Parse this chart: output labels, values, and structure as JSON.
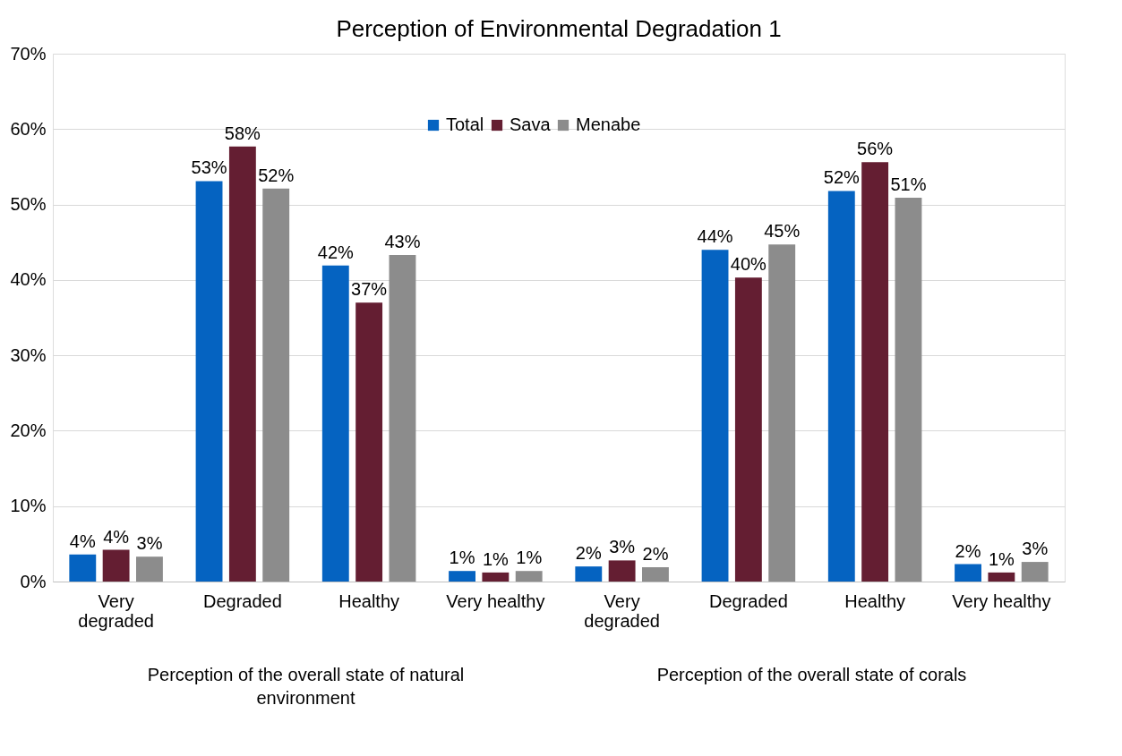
{
  "chart_data": {
    "type": "bar",
    "title": "Perception of Environmental Degradation 1",
    "categories": [
      "Very degraded",
      "Degraded",
      "Healthy",
      "Very healthy",
      "Very degraded",
      "Degraded",
      "Healthy",
      "Very healthy"
    ],
    "series": [
      {
        "name": "Total",
        "color": "#0563c1",
        "values": [
          3.6,
          53.1,
          41.9,
          1.4,
          2.0,
          44.0,
          51.8,
          2.3
        ],
        "value_labels": [
          "4%",
          "53%",
          "42%",
          "1%",
          "2%",
          "44%",
          "52%",
          "2%"
        ]
      },
      {
        "name": "Sava",
        "color": "#641e32",
        "values": [
          4.2,
          57.7,
          37.0,
          1.2,
          2.8,
          40.3,
          55.6,
          1.2
        ],
        "value_labels": [
          "4%",
          "58%",
          "37%",
          "1%",
          "3%",
          "40%",
          "56%",
          "1%"
        ]
      },
      {
        "name": "Menabe",
        "color": "#8c8c8c",
        "values": [
          3.3,
          52.1,
          43.3,
          1.4,
          1.9,
          44.7,
          50.9,
          2.6
        ],
        "value_labels": [
          "3%",
          "52%",
          "43%",
          "1%",
          "2%",
          "45%",
          "51%",
          "3%"
        ]
      }
    ],
    "ylim": [
      0,
      70
    ],
    "yticks": [
      {
        "value": 0,
        "label": "0%"
      },
      {
        "value": 10,
        "label": "10%"
      },
      {
        "value": 20,
        "label": "20%"
      },
      {
        "value": 30,
        "label": "30%"
      },
      {
        "value": 40,
        "label": "40%"
      },
      {
        "value": 50,
        "label": "50%"
      },
      {
        "value": 60,
        "label": "60%"
      },
      {
        "value": 70,
        "label": "70%"
      }
    ],
    "annotations": [
      "Perception of the overall state of natural environment",
      "Perception of the overall state of corals"
    ],
    "grid": "y",
    "legend": "top"
  }
}
